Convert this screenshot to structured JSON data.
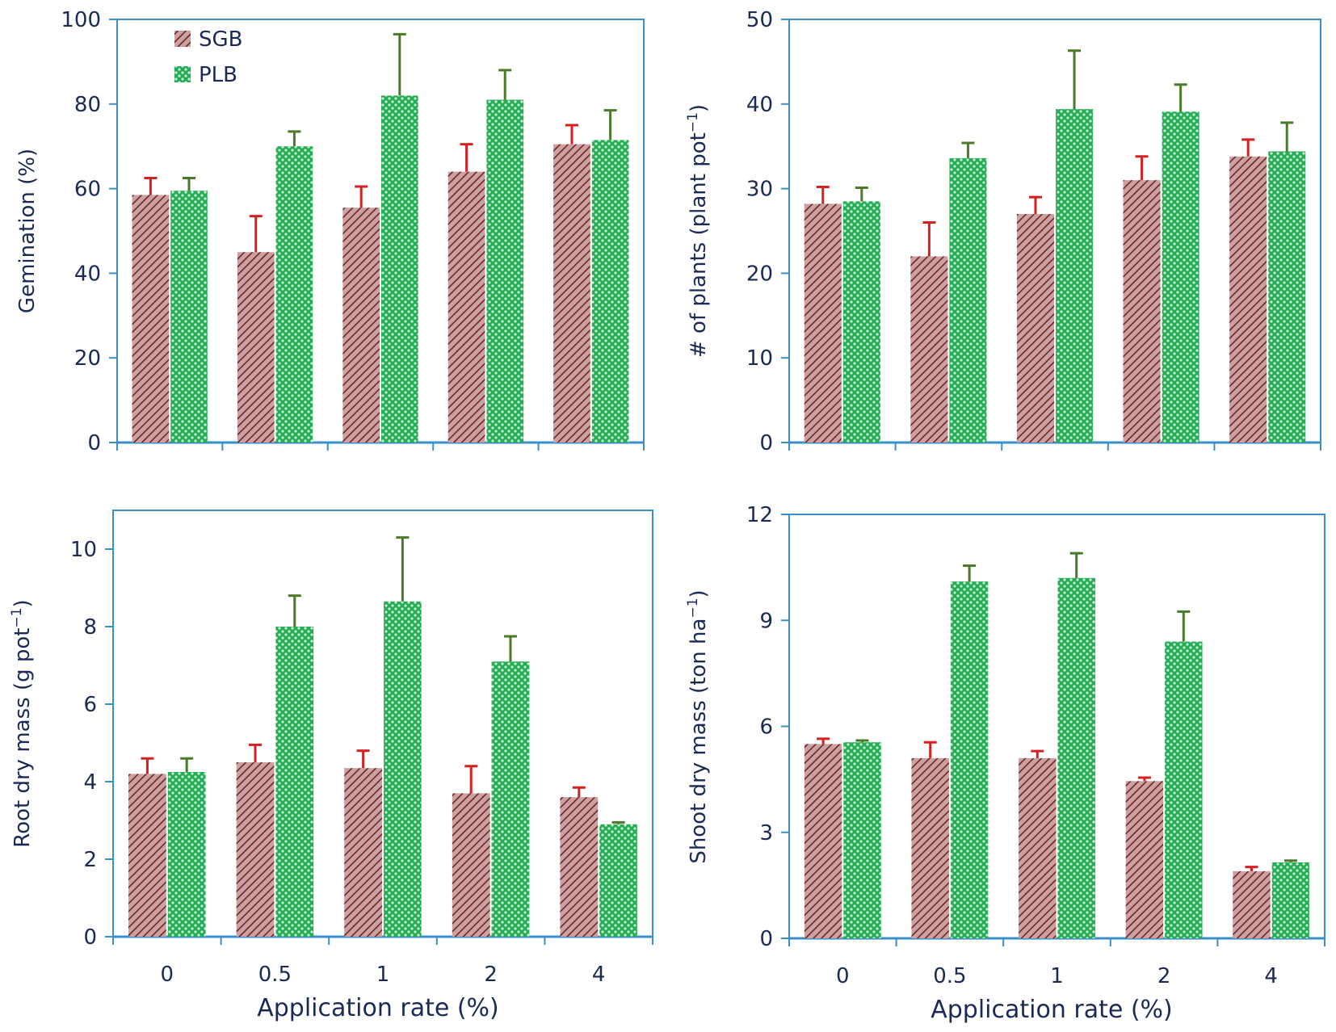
{
  "legend": [
    {
      "name": "SGB",
      "color": "#8b3a3a"
    },
    {
      "name": "PLB",
      "color": "#1fa64c"
    }
  ],
  "x_axis_title": "Application rate (%)",
  "colors": {
    "axis": "#3b8fc9",
    "sgb_fill": "#c99797",
    "sgb_hatch": "#6e1f1f",
    "plb_fill": "#2fb45a",
    "plb_dot": "#c9f0d6",
    "sgb_error": "#d42020",
    "plb_error": "#4a7a2a",
    "text": "#1a2a55"
  },
  "chart_data": [
    {
      "type": "bar",
      "ylabel": "Gemination (%)",
      "ylim": [
        0,
        100
      ],
      "yticks": [
        "0",
        "20",
        "40",
        "60",
        "80",
        "100"
      ],
      "categories": [
        "0",
        "0.5",
        "1",
        "2",
        "4"
      ],
      "series": [
        {
          "name": "SGB",
          "values": [
            58.5,
            45,
            55.5,
            64,
            70.5
          ],
          "errors": [
            4,
            8.5,
            5,
            6.5,
            4.5
          ]
        },
        {
          "name": "PLB",
          "values": [
            59.5,
            70,
            82,
            81,
            71.5
          ],
          "errors": [
            3,
            3.5,
            14.5,
            7,
            7
          ]
        }
      ]
    },
    {
      "type": "bar",
      "ylabel": "# of plants (plant pot-1)",
      "ylim": [
        0,
        50
      ],
      "yticks": [
        "0",
        "10",
        "20",
        "30",
        "40",
        "50"
      ],
      "categories": [
        "0",
        "0.5",
        "1",
        "2",
        "4"
      ],
      "series": [
        {
          "name": "SGB",
          "values": [
            28.2,
            22,
            27,
            31,
            33.8
          ],
          "errors": [
            2,
            4,
            2,
            2.8,
            2
          ]
        },
        {
          "name": "PLB",
          "values": [
            28.5,
            33.6,
            39.4,
            39.1,
            34.4
          ],
          "errors": [
            1.6,
            1.8,
            6.9,
            3.2,
            3.4
          ]
        }
      ]
    },
    {
      "type": "bar",
      "ylabel": "Root dry mass (g pot-1)",
      "ylim": [
        0,
        11
      ],
      "yticks": [
        "0",
        "2",
        "4",
        "6",
        "8",
        "10"
      ],
      "categories": [
        "0",
        "0.5",
        "1",
        "2",
        "4"
      ],
      "series": [
        {
          "name": "SGB",
          "values": [
            4.2,
            4.5,
            4.35,
            3.7,
            3.6
          ],
          "errors": [
            0.4,
            0.45,
            0.45,
            0.7,
            0.25
          ]
        },
        {
          "name": "PLB",
          "values": [
            4.25,
            8.0,
            8.65,
            7.1,
            2.9
          ],
          "errors": [
            0.35,
            0.8,
            1.65,
            0.65,
            0.05
          ]
        }
      ]
    },
    {
      "type": "bar",
      "ylabel": "Shoot dry mass (ton ha-1)",
      "ylim": [
        0,
        12
      ],
      "yticks": [
        "0",
        "3",
        "6",
        "9",
        "12"
      ],
      "categories": [
        "0",
        "0.5",
        "1",
        "2",
        "4"
      ],
      "series": [
        {
          "name": "SGB",
          "values": [
            5.5,
            5.1,
            5.1,
            4.45,
            1.9
          ],
          "errors": [
            0.15,
            0.45,
            0.2,
            0.1,
            0.12
          ]
        },
        {
          "name": "PLB",
          "values": [
            5.55,
            10.1,
            10.2,
            8.4,
            2.15
          ],
          "errors": [
            0.05,
            0.45,
            0.7,
            0.85,
            0.05
          ]
        }
      ]
    }
  ]
}
